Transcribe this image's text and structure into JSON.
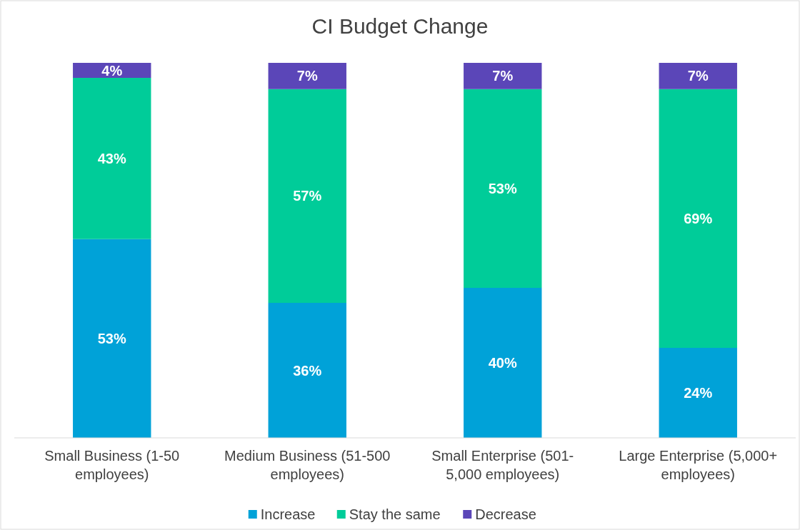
{
  "chart_data": {
    "type": "bar",
    "title": "CI Budget Change",
    "stacked": true,
    "legend": "bottom",
    "categories": [
      "Small Business (1-50 employees)",
      "Medium Business (51-500 employees)",
      "Small Enterprise (501-5,000 employees)",
      "Large Enterprise (5,000+ employees)"
    ],
    "series": [
      {
        "name": "Increase",
        "color": "#00a2d8",
        "values": [
          53,
          36,
          40,
          24
        ],
        "value_labels": [
          "53%",
          "36%",
          "40%",
          "24%"
        ]
      },
      {
        "name": "Stay the same",
        "color": "#00cc99",
        "values": [
          43,
          57,
          53,
          69
        ],
        "value_labels": [
          "43%",
          "57%",
          "53%",
          "69%"
        ]
      },
      {
        "name": "Decrease",
        "color": "#5b46b8",
        "values": [
          4,
          7,
          7,
          7
        ],
        "value_labels": [
          "4%",
          "7%",
          "7%",
          "7%"
        ]
      }
    ]
  }
}
